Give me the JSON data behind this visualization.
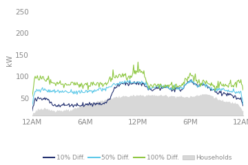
{
  "title": "",
  "ylabel": "kW",
  "yticks": [
    50,
    100,
    150,
    200,
    250
  ],
  "ylim": [
    10,
    265
  ],
  "xtick_labels": [
    "12AM",
    "6AM",
    "12PM",
    "6PM",
    "12AM"
  ],
  "color_10pct": "#1f2d6e",
  "color_50pct": "#5bc8e8",
  "color_100pct": "#8dc63f",
  "color_households": "#d8d8d8",
  "legend_labels": [
    "10% Diff.",
    "50% Diff.",
    "100% Diff.",
    "Households"
  ],
  "n_points": 288
}
